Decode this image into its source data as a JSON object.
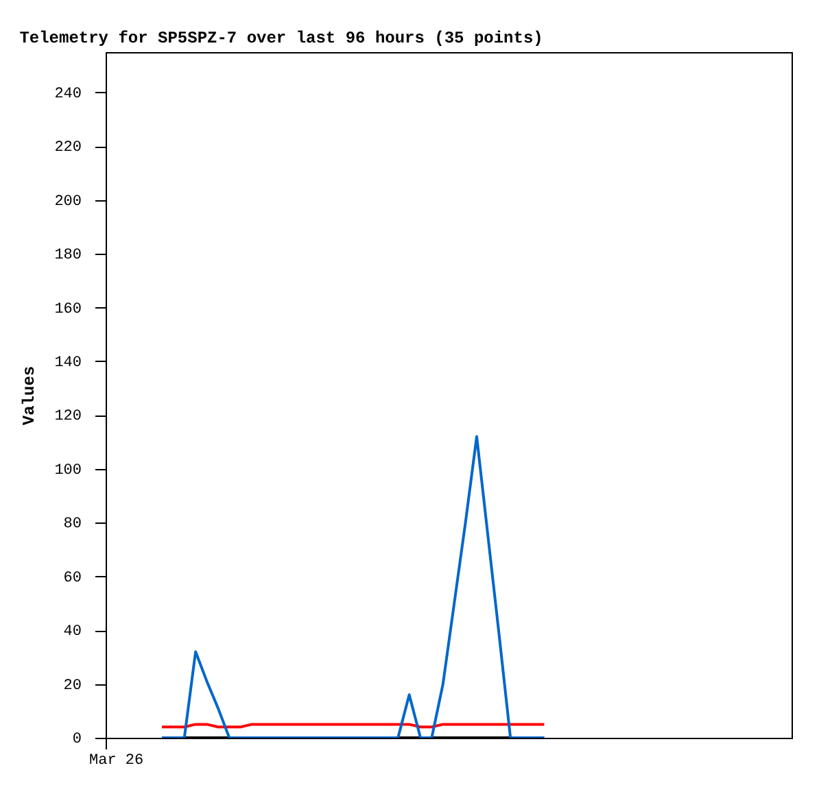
{
  "chart_data": {
    "type": "line",
    "title": "Telemetry for SP5SPZ-7 over last 96 hours (35 points)",
    "ylabel": "Values",
    "annotations": [
      "Mar 26"
    ],
    "categories": [
      null,
      null,
      null,
      null,
      null,
      null,
      null,
      null,
      null,
      null,
      null,
      null,
      null,
      null,
      null,
      null,
      null,
      null,
      null,
      null,
      null,
      null,
      null,
      null,
      null,
      null,
      null,
      null,
      null,
      null,
      null,
      null,
      null,
      null,
      null,
      null,
      null,
      null,
      null,
      null,
      null,
      null,
      null,
      null,
      null,
      null,
      null,
      null,
      null,
      null,
      null,
      null,
      null,
      null,
      null,
      null,
      null,
      null,
      null,
      null,
      null,
      null
    ],
    "ylim": [
      0,
      255
    ],
    "yticks": [
      0,
      20,
      40,
      60,
      80,
      100,
      120,
      140,
      160,
      180,
      200,
      220,
      240
    ],
    "grid": false,
    "legend": false,
    "marker": "none",
    "line_style": "solid",
    "series": [
      {
        "color": "#000000",
        "values": [
          null,
          null,
          null,
          null,
          null,
          0,
          0,
          0,
          0,
          0,
          0,
          0,
          0,
          0,
          0,
          0,
          0,
          0,
          0,
          0,
          0,
          0,
          0,
          0,
          0,
          0,
          0,
          0,
          0,
          0,
          0,
          0,
          0,
          0,
          0,
          0,
          0,
          0,
          0,
          0,
          null,
          null,
          null,
          null,
          null,
          null,
          null,
          null,
          null,
          null,
          null,
          null,
          null,
          null,
          null,
          null,
          null,
          null,
          null,
          null,
          null,
          null
        ]
      },
      {
        "color": "#ff0000",
        "values": [
          null,
          null,
          null,
          null,
          null,
          4,
          4,
          4,
          5,
          5,
          4,
          4,
          4,
          5,
          5,
          5,
          5,
          5,
          5,
          5,
          5,
          5,
          5,
          5,
          5,
          5,
          5,
          5,
          4,
          4,
          5,
          5,
          5,
          5,
          5,
          5,
          5,
          5,
          5,
          5,
          null,
          null,
          null,
          null,
          null,
          null,
          null,
          null,
          null,
          null,
          null,
          null,
          null,
          null,
          null,
          null,
          null,
          null,
          null,
          null,
          null,
          null
        ]
      },
      {
        "color": "#0066cc",
        "values": [
          null,
          null,
          null,
          null,
          null,
          0,
          0,
          0,
          32,
          21,
          11,
          0,
          0,
          0,
          0,
          0,
          0,
          0,
          0,
          0,
          0,
          0,
          0,
          0,
          0,
          0,
          0,
          16,
          0,
          0,
          20,
          50,
          80,
          112,
          75,
          38,
          0,
          0,
          0,
          0,
          null,
          null,
          null,
          null,
          null,
          null,
          null,
          null,
          null,
          null,
          null,
          null,
          null,
          null,
          null,
          null,
          null,
          null,
          null,
          null,
          null,
          null
        ]
      }
    ]
  }
}
